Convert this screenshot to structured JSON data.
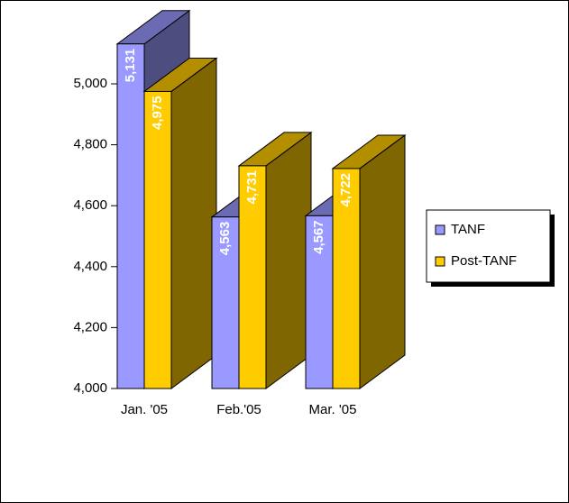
{
  "chart_data": {
    "type": "bar3d",
    "categories": [
      "Jan. '05",
      "Feb.'05",
      "Mar. '05"
    ],
    "series": [
      {
        "name": "TANF",
        "color": "#9999ff",
        "values": [
          5131,
          4563,
          4567
        ],
        "value_labels": [
          "5,131",
          "4,563",
          "4,567"
        ]
      },
      {
        "name": "Post-TANF",
        "color": "#ffcc00",
        "values": [
          4975,
          4731,
          4722
        ],
        "value_labels": [
          "4,975",
          "4,731",
          "4,722"
        ]
      }
    ],
    "ylim": [
      4000,
      5000
    ],
    "yticks": [
      {
        "value": 4000,
        "label": "4,000"
      },
      {
        "value": 4200,
        "label": "4,200"
      },
      {
        "value": 4400,
        "label": "4,400"
      },
      {
        "value": 4600,
        "label": "4,600"
      },
      {
        "value": 4800,
        "label": "4,800"
      },
      {
        "value": 5000,
        "label": "5,000"
      }
    ],
    "legend": "right"
  }
}
